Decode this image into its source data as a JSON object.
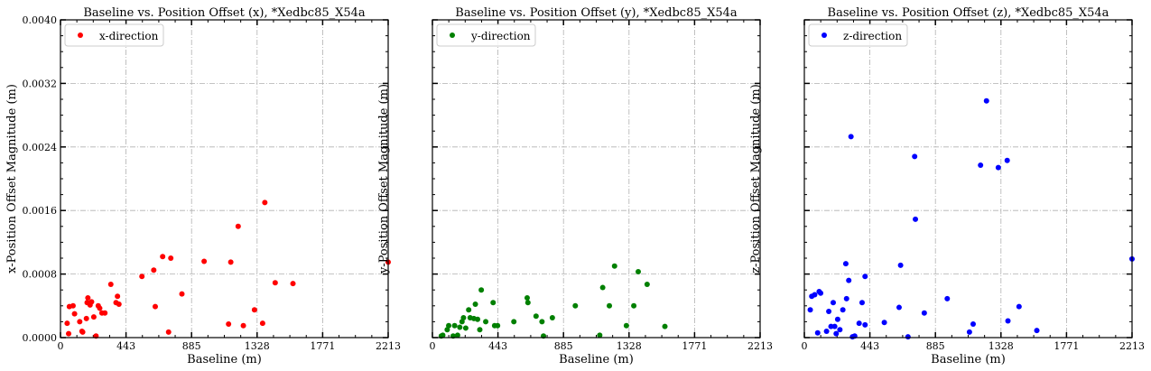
{
  "chart_data": [
    {
      "type": "scatter",
      "title": "Baseline vs. Position Offset (x), *Xedbc85_X54a",
      "xlabel": "Baseline (m)",
      "ylabel": "x-Position Offset Magnitude (m)",
      "xlim": [
        0,
        2213
      ],
      "ylim": [
        0,
        0.004
      ],
      "xticks": [
        "0",
        "443",
        "885",
        "1328",
        "1771",
        "2213"
      ],
      "yticks": [
        "0.0000",
        "0.0008",
        "0.0016",
        "0.0024",
        "0.0032",
        "0.0040"
      ],
      "grid": true,
      "legend_position": "top-left",
      "series": [
        {
          "name": "x-direction",
          "color": "#ff0000",
          "points": [
            [
              45,
              0.00018
            ],
            [
              55,
              5e-05
            ],
            [
              60,
              0.00039
            ],
            [
              85,
              0.0004
            ],
            [
              95,
              0.0003
            ],
            [
              130,
              0.0002
            ],
            [
              145,
              8e-05
            ],
            [
              150,
              7e-05
            ],
            [
              175,
              0.00024
            ],
            [
              180,
              0.00044
            ],
            [
              185,
              0.0005
            ],
            [
              200,
              0.00041
            ],
            [
              210,
              0.00045
            ],
            [
              225,
              0.00026
            ],
            [
              240,
              2e-05
            ],
            [
              255,
              0.0004
            ],
            [
              265,
              0.00037
            ],
            [
              280,
              0.00031
            ],
            [
              300,
              0.00031
            ],
            [
              340,
              0.00067
            ],
            [
              375,
              0.00044
            ],
            [
              385,
              0.00052
            ],
            [
              395,
              0.00042
            ],
            [
              550,
              0.00077
            ],
            [
              630,
              0.00085
            ],
            [
              640,
              0.00039
            ],
            [
              690,
              0.00102
            ],
            [
              730,
              7e-05
            ],
            [
              745,
              0.001
            ],
            [
              820,
              0.00055
            ],
            [
              970,
              0.00096
            ],
            [
              1135,
              0.00017
            ],
            [
              1150,
              0.00095
            ],
            [
              1200,
              0.0014
            ],
            [
              1235,
              0.00015
            ],
            [
              1310,
              0.00035
            ],
            [
              1365,
              0.00018
            ],
            [
              1380,
              0.0017
            ],
            [
              1450,
              0.00069
            ],
            [
              1570,
              0.00068
            ],
            [
              2213,
              0.00095
            ]
          ]
        }
      ]
    },
    {
      "type": "scatter",
      "title": "Baseline vs. Position Offset (y), *Xedbc85_X54a",
      "xlabel": "Baseline (m)",
      "ylabel": "y-Position Offset Magnitude (m)",
      "xlim": [
        0,
        2213
      ],
      "ylim": [
        0,
        0.004
      ],
      "xticks": [
        "0",
        "443",
        "885",
        "1328",
        "1771",
        "2213"
      ],
      "yticks": [],
      "grid": true,
      "legend_position": "top-left",
      "series": [
        {
          "name": "y-direction",
          "color": "#008000",
          "points": [
            [
              60,
              2e-05
            ],
            [
              70,
              3e-05
            ],
            [
              100,
              0.0001
            ],
            [
              110,
              0.00015
            ],
            [
              140,
              2e-05
            ],
            [
              150,
              0.00015
            ],
            [
              170,
              3e-05
            ],
            [
              185,
              0.00013
            ],
            [
              200,
              0.0002
            ],
            [
              210,
              0.00025
            ],
            [
              225,
              0.00012
            ],
            [
              245,
              0.00035
            ],
            [
              255,
              0.00025
            ],
            [
              280,
              0.00024
            ],
            [
              290,
              0.00042
            ],
            [
              305,
              0.00023
            ],
            [
              320,
              0.0001
            ],
            [
              330,
              0.0006
            ],
            [
              360,
              0.0002
            ],
            [
              410,
              0.00044
            ],
            [
              420,
              0.00015
            ],
            [
              440,
              0.00015
            ],
            [
              550,
              0.0002
            ],
            [
              640,
              0.0005
            ],
            [
              645,
              0.00044
            ],
            [
              700,
              0.00027
            ],
            [
              740,
              0.0002
            ],
            [
              750,
              2e-05
            ],
            [
              810,
              0.00025
            ],
            [
              965,
              0.0004
            ],
            [
              1130,
              3e-05
            ],
            [
              1150,
              0.00063
            ],
            [
              1195,
              0.0004
            ],
            [
              1230,
              0.0009
            ],
            [
              1310,
              0.00015
            ],
            [
              1360,
              0.0004
            ],
            [
              1390,
              0.00083
            ],
            [
              1450,
              0.00067
            ],
            [
              1570,
              0.00014
            ]
          ]
        }
      ]
    },
    {
      "type": "scatter",
      "title": "Baseline vs. Position Offset (z), *Xedbc85_X54a",
      "xlabel": "Baseline (m)",
      "ylabel": "z-Position Offset Magnitude (m)",
      "xlim": [
        0,
        2213
      ],
      "ylim": [
        0,
        0.004
      ],
      "xticks": [
        "0",
        "443",
        "885",
        "1328",
        "1771",
        "2213"
      ],
      "yticks": [],
      "grid": true,
      "legend_position": "top-left",
      "series": [
        {
          "name": "z-direction",
          "color": "#0000ff",
          "points": [
            [
              40,
              0.00035
            ],
            [
              50,
              0.00052
            ],
            [
              70,
              0.00054
            ],
            [
              90,
              6e-05
            ],
            [
              100,
              0.00058
            ],
            [
              110,
              0.00056
            ],
            [
              150,
              8e-05
            ],
            [
              165,
              0.00033
            ],
            [
              180,
              0.00014
            ],
            [
              195,
              0.00044
            ],
            [
              205,
              0.00014
            ],
            [
              215,
              5e-05
            ],
            [
              225,
              0.00023
            ],
            [
              240,
              0.0001
            ],
            [
              260,
              0.00035
            ],
            [
              280,
              0.00093
            ],
            [
              285,
              0.00049
            ],
            [
              300,
              0.00072
            ],
            [
              315,
              0.00253
            ],
            [
              325,
              1e-05
            ],
            [
              340,
              2e-05
            ],
            [
              370,
              0.00018
            ],
            [
              390,
              0.00044
            ],
            [
              410,
              0.00077
            ],
            [
              410,
              0.00016
            ],
            [
              540,
              0.00019
            ],
            [
              640,
              0.00038
            ],
            [
              650,
              0.00091
            ],
            [
              700,
              1e-05
            ],
            [
              745,
              0.00228
            ],
            [
              750,
              0.00149
            ],
            [
              810,
              0.00031
            ],
            [
              965,
              0.00049
            ],
            [
              1115,
              7e-05
            ],
            [
              1140,
              0.00017
            ],
            [
              1190,
              0.00217
            ],
            [
              1230,
              0.00298
            ],
            [
              1310,
              0.00214
            ],
            [
              1370,
              0.00223
            ],
            [
              1375,
              0.00021
            ],
            [
              1450,
              0.00039
            ],
            [
              1570,
              9e-05
            ],
            [
              2213,
              0.00099
            ]
          ]
        }
      ]
    }
  ]
}
